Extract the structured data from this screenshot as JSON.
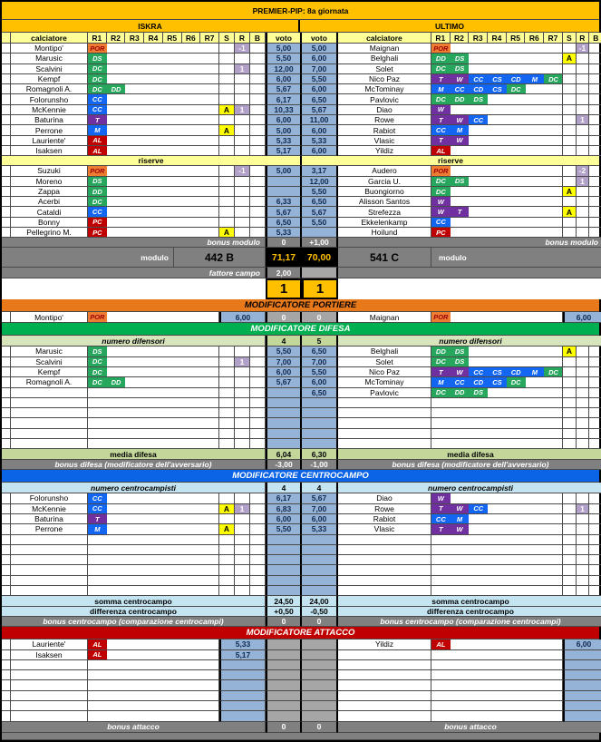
{
  "title": "PREMIER-PIP: 8a giornata",
  "teams": {
    "left": "ISKRA",
    "right": "ULTIMO"
  },
  "header": {
    "calciatore": "calciatore",
    "roles": [
      "R1",
      "R2",
      "R3",
      "R4",
      "R5",
      "R6",
      "R7"
    ],
    "s": "S",
    "r": "R",
    "b": "B",
    "voto": "voto"
  },
  "riserve_label": "riserve",
  "colors": {
    "gold": "#FFC000",
    "pale_yellow": "#FFFF99",
    "voto_blue": "#95B3D7",
    "gray": "#808080",
    "por_badge": "#ED7D31",
    "def_badge": "#27A65D",
    "mid_badge": "#1266F1",
    "tre_badge": "#7030A0",
    "att_badge": "#C00000",
    "s_badge": "#FFFF00",
    "r_badge": "#B1A0C7",
    "bar_portiere": "#E8791A",
    "bar_difesa": "#00B050",
    "bar_centrocampo": "#0B63E5",
    "bar_attacco": "#C00000",
    "media_green": "#C4D79B",
    "numero_green": "#D8E4BC",
    "somma_blue": "#C3E4F0",
    "totals_bg": "#000000"
  },
  "starters": {
    "left": [
      {
        "name": "Montipo'",
        "roles": [
          "POR"
        ],
        "s": "",
        "r": "-1",
        "voto": "5,00"
      },
      {
        "name": "Marusic",
        "roles": [
          "DS"
        ],
        "s": "",
        "r": "",
        "voto": "5,50"
      },
      {
        "name": "Scalvini",
        "roles": [
          "DC"
        ],
        "s": "",
        "r": "1",
        "voto": "12,00"
      },
      {
        "name": "Kempf",
        "roles": [
          "DC"
        ],
        "s": "",
        "r": "",
        "voto": "6,00"
      },
      {
        "name": "Romagnoli A.",
        "roles": [
          "DC",
          "DD"
        ],
        "s": "",
        "r": "",
        "voto": "5,67"
      },
      {
        "name": "Folorunsho",
        "roles": [
          "CC"
        ],
        "s": "",
        "r": "",
        "voto": "6,17"
      },
      {
        "name": "McKennie",
        "roles": [
          "CC"
        ],
        "s": "A",
        "r": "1",
        "voto": "10,33"
      },
      {
        "name": "Baturina",
        "roles": [
          "T"
        ],
        "s": "",
        "r": "",
        "voto": "6,00"
      },
      {
        "name": "Perrone",
        "roles": [
          "M"
        ],
        "s": "A",
        "r": "",
        "voto": "5,00"
      },
      {
        "name": "Lauriente'",
        "roles": [
          "AL"
        ],
        "s": "",
        "r": "",
        "voto": "5,33"
      },
      {
        "name": "Isaksen",
        "roles": [
          "AL"
        ],
        "s": "",
        "r": "",
        "voto": "5,17"
      }
    ],
    "right": [
      {
        "name": "Maignan",
        "roles": [
          "POR"
        ],
        "s": "",
        "r": "-1",
        "voto": "5,00"
      },
      {
        "name": "Belghali",
        "roles": [
          "DD",
          "DS"
        ],
        "s": "A",
        "r": "",
        "voto": "6,00"
      },
      {
        "name": "Solet",
        "roles": [
          "DC",
          "DS"
        ],
        "s": "",
        "r": "",
        "voto": "7,00"
      },
      {
        "name": "Nico Paz",
        "roles": [
          "T",
          "W",
          "CC",
          "CS",
          "CD",
          "M",
          "DC"
        ],
        "s": "",
        "r": "",
        "voto": "5,50"
      },
      {
        "name": "McTominay",
        "roles": [
          "M",
          "CC",
          "CD",
          "CS",
          "DC"
        ],
        "s": "",
        "r": "",
        "voto": "6,00"
      },
      {
        "name": "Pavlovic",
        "roles": [
          "DC",
          "DD",
          "DS"
        ],
        "s": "",
        "r": "",
        "voto": "6,50"
      },
      {
        "name": "Diao",
        "roles": [
          "W"
        ],
        "s": "",
        "r": "",
        "voto": "5,67"
      },
      {
        "name": "Rowe",
        "roles": [
          "T",
          "W",
          "CC"
        ],
        "s": "",
        "r": "1",
        "voto": "11,00"
      },
      {
        "name": "Rabiot",
        "roles": [
          "CC",
          "M"
        ],
        "s": "",
        "r": "",
        "voto": "6,00"
      },
      {
        "name": "Vlasic",
        "roles": [
          "T",
          "W"
        ],
        "s": "",
        "r": "",
        "voto": "5,33"
      },
      {
        "name": "Yildiz",
        "roles": [
          "AL"
        ],
        "s": "",
        "r": "",
        "voto": "6,00"
      }
    ]
  },
  "reserves": {
    "left": [
      {
        "name": "Suzuki",
        "roles": [
          "POR"
        ],
        "s": "",
        "r": "-1",
        "voto": "5,00"
      },
      {
        "name": "Moreno",
        "roles": [
          "DS"
        ],
        "s": "",
        "r": "",
        "voto": ""
      },
      {
        "name": "Zappa",
        "roles": [
          "DD"
        ],
        "s": "",
        "r": "",
        "voto": ""
      },
      {
        "name": "Acerbi",
        "roles": [
          "DC"
        ],
        "s": "",
        "r": "",
        "voto": "6,33"
      },
      {
        "name": "Cataldi",
        "roles": [
          "CC"
        ],
        "s": "",
        "r": "",
        "voto": "5,67"
      },
      {
        "name": "Bonny",
        "roles": [
          "PC"
        ],
        "s": "",
        "r": "",
        "voto": "6,50"
      },
      {
        "name": "Pellegrino M.",
        "roles": [
          "PC"
        ],
        "s": "A",
        "r": "",
        "voto": "5,33"
      }
    ],
    "right": [
      {
        "name": "Audero",
        "roles": [
          "POR"
        ],
        "s": "",
        "r": "-2",
        "voto": "3,17"
      },
      {
        "name": "Garcia U.",
        "roles": [
          "DC",
          "DS"
        ],
        "s": "",
        "r": "1",
        "voto": "12,00"
      },
      {
        "name": "Buongiorno",
        "roles": [
          "DC"
        ],
        "s": "A",
        "r": "",
        "voto": "5,50"
      },
      {
        "name": "Alisson Santos",
        "roles": [
          "W"
        ],
        "s": "",
        "r": "",
        "voto": "6,50"
      },
      {
        "name": "Strefezza",
        "roles": [
          "W",
          "T"
        ],
        "s": "A",
        "r": "",
        "voto": "5,67"
      },
      {
        "name": "Ekkelenkamp",
        "roles": [
          "CC"
        ],
        "s": "",
        "r": "",
        "voto": "5,50"
      },
      {
        "name": "Hoilund",
        "roles": [
          "PC"
        ],
        "s": "",
        "r": "",
        "voto": ""
      }
    ]
  },
  "summary": {
    "bonus_modulo_label": "bonus modulo",
    "bonus_modulo": [
      "0",
      "+1,00"
    ],
    "modulo_label": "modulo",
    "modulo": [
      "442 B",
      "541 C"
    ],
    "totals": [
      "71,17",
      "70,00"
    ],
    "fattore_label": "fattore campo",
    "fattore": "2,00",
    "score": [
      "1",
      "1"
    ]
  },
  "sections": {
    "portiere": {
      "title": "MODIFICATORE PORTIERE",
      "center": [
        "0",
        "0"
      ],
      "rows": [
        {
          "left": {
            "name": "Montipo'",
            "roles": [
              "POR"
            ],
            "voto": "6,00"
          },
          "right": {
            "name": "Maignan",
            "roles": [
              "POR"
            ],
            "voto": "6,00"
          }
        }
      ]
    },
    "difesa": {
      "title": "MODIFICATORE DIFESA",
      "numero_label": "numero difensori",
      "numero": [
        "4",
        "5"
      ],
      "rows": [
        {
          "left": {
            "name": "Marusic",
            "roles": [
              "DS"
            ],
            "s": "",
            "r": "",
            "voto": "5,50"
          },
          "right": {
            "name": "Belghali",
            "roles": [
              "DD",
              "DS"
            ],
            "s": "A",
            "r": "",
            "voto": "6,50"
          }
        },
        {
          "left": {
            "name": "Scalvini",
            "roles": [
              "DC"
            ],
            "s": "",
            "r": "1",
            "voto": "7,00"
          },
          "right": {
            "name": "Solet",
            "roles": [
              "DC",
              "DS"
            ],
            "s": "",
            "r": "",
            "voto": "7,00"
          }
        },
        {
          "left": {
            "name": "Kempf",
            "roles": [
              "DC"
            ],
            "s": "",
            "r": "",
            "voto": "6,00"
          },
          "right": {
            "name": "Nico Paz",
            "roles": [
              "T",
              "W",
              "CC",
              "CS",
              "CD",
              "M",
              "DC"
            ],
            "s": "",
            "r": "",
            "voto": "5,50"
          }
        },
        {
          "left": {
            "name": "Romagnoli A.",
            "roles": [
              "DC",
              "DD"
            ],
            "s": "",
            "r": "",
            "voto": "5,67"
          },
          "right": {
            "name": "McTominay",
            "roles": [
              "M",
              "CC",
              "CD",
              "CS",
              "DC"
            ],
            "s": "",
            "r": "",
            "voto": "6,00"
          }
        },
        {
          "left": null,
          "right": {
            "name": "Pavlovic",
            "roles": [
              "DC",
              "DD",
              "DS"
            ],
            "s": "",
            "r": "",
            "voto": "6,50"
          }
        }
      ],
      "media_label": "media difesa",
      "media": [
        "6,04",
        "6,30"
      ],
      "bonus_label": "bonus difesa (modificatore dell'avversario)",
      "bonus": [
        "-3,00",
        "-1,00"
      ]
    },
    "centrocampo": {
      "title": "MODIFICATORE CENTROCAMPO",
      "numero_label": "numero centrocampisti",
      "numero": [
        "4",
        "4"
      ],
      "rows": [
        {
          "left": {
            "name": "Folorunsho",
            "roles": [
              "CC"
            ],
            "s": "",
            "r": "",
            "voto": "6,17"
          },
          "right": {
            "name": "Diao",
            "roles": [
              "W"
            ],
            "s": "",
            "r": "",
            "voto": "5,67"
          }
        },
        {
          "left": {
            "name": "McKennie",
            "roles": [
              "CC"
            ],
            "s": "A",
            "r": "1",
            "voto": "6,83"
          },
          "right": {
            "name": "Rowe",
            "roles": [
              "T",
              "W",
              "CC"
            ],
            "s": "",
            "r": "1",
            "voto": "7,00"
          }
        },
        {
          "left": {
            "name": "Baturina",
            "roles": [
              "T"
            ],
            "s": "",
            "r": "",
            "voto": "6,00"
          },
          "right": {
            "name": "Rabiot",
            "roles": [
              "CC",
              "M"
            ],
            "s": "",
            "r": "",
            "voto": "6,00"
          }
        },
        {
          "left": {
            "name": "Perrone",
            "roles": [
              "M"
            ],
            "s": "A",
            "r": "",
            "voto": "5,50"
          },
          "right": {
            "name": "Vlasic",
            "roles": [
              "T",
              "W"
            ],
            "s": "",
            "r": "",
            "voto": "5,33"
          }
        }
      ],
      "somma_label": "somma centrocampo",
      "somma": [
        "24,50",
        "24,00"
      ],
      "differenza_label": "differenza centrocampo",
      "differenza": [
        "+0,50",
        "-0,50"
      ],
      "bonus_label": "bonus centrocampo (comparazione centrocampi)",
      "bonus": [
        "0",
        "0"
      ]
    },
    "attacco": {
      "title": "MODIFICATORE ATTACCO",
      "rows": [
        {
          "left": {
            "name": "Lauriente'",
            "roles": [
              "AL"
            ],
            "voto": "5,33"
          },
          "right": {
            "name": "Yildiz",
            "roles": [
              "AL"
            ],
            "voto": "6,00"
          }
        },
        {
          "left": {
            "name": "Isaksen",
            "roles": [
              "AL"
            ],
            "voto": "5,17"
          },
          "right": null
        }
      ],
      "bonus_label": "bonus attacco",
      "bonus": [
        "0",
        "0"
      ]
    }
  }
}
